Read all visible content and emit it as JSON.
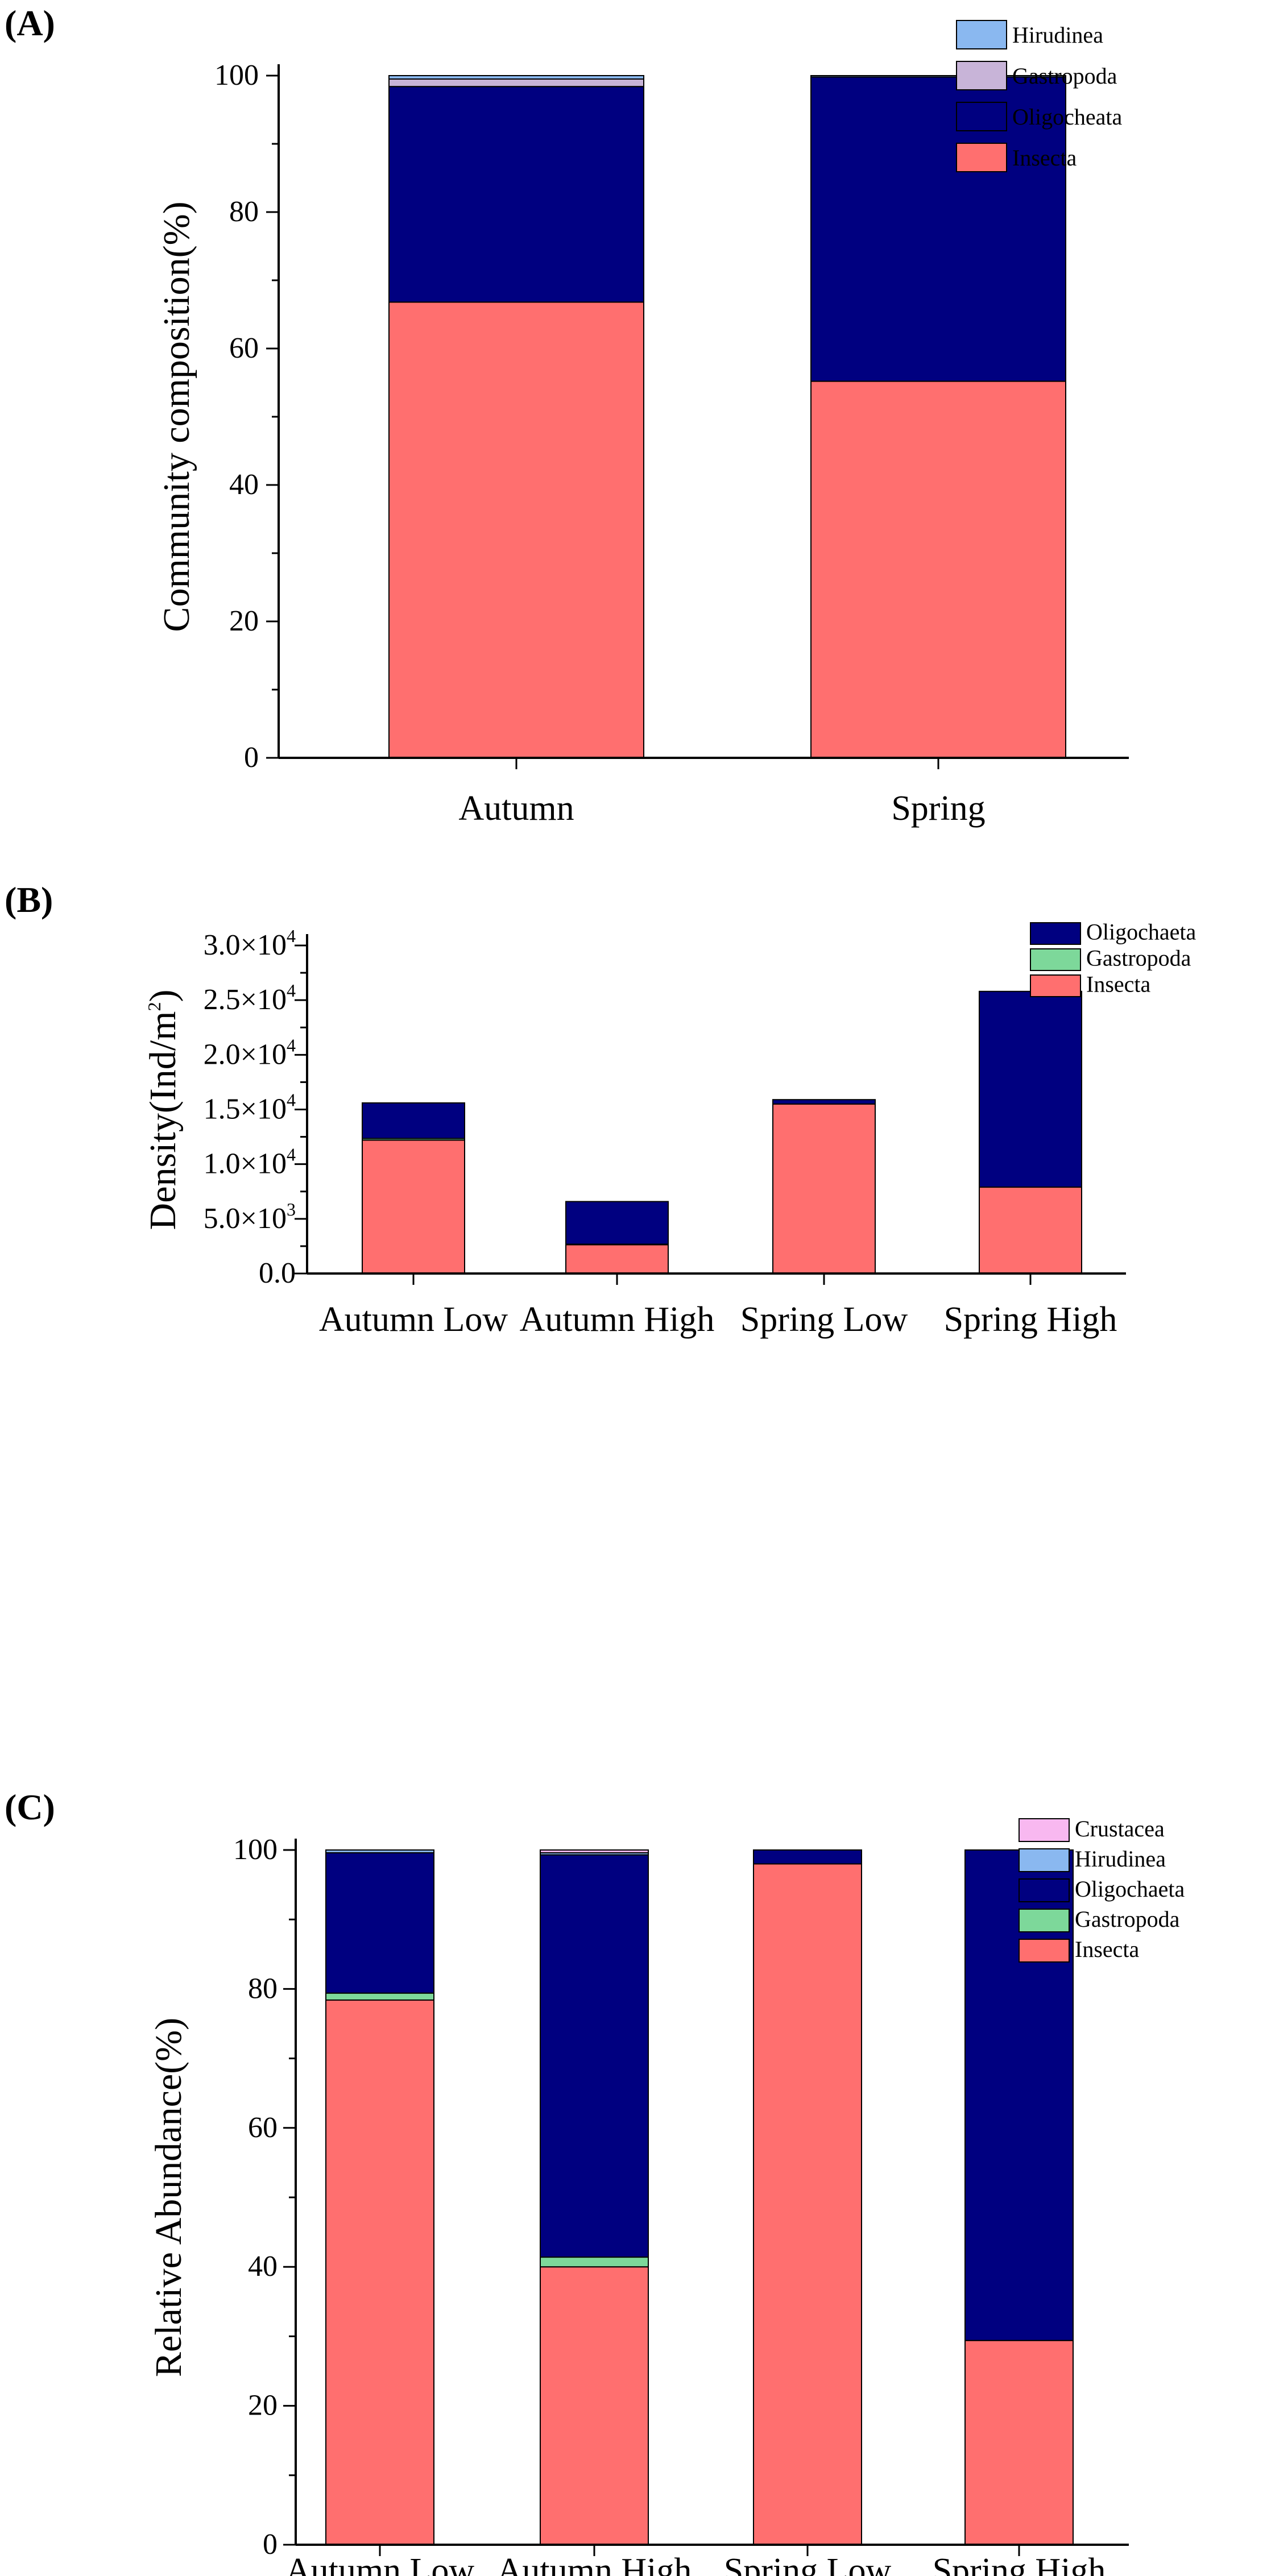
{
  "chart_data": [
    {
      "panel": "(A)",
      "type": "bar",
      "stacked": true,
      "categories": [
        "Autumn",
        "Spring"
      ],
      "ylabel": "Community composition(%)",
      "xlabel": "",
      "ylim": [
        0,
        100
      ],
      "yticks": [
        0,
        20,
        40,
        60,
        80,
        100
      ],
      "ytick_labels": [
        "0",
        "20",
        "40",
        "60",
        "80",
        "100"
      ],
      "legend_position": "top-right",
      "legend": [
        "Hirudinea",
        "Gastropoda",
        "Oligocheata",
        "Insecta"
      ],
      "series": [
        {
          "name": "Insecta",
          "color": "#ff6f6f",
          "values": [
            66.8,
            55.2
          ]
        },
        {
          "name": "Oligocheata",
          "color": "#000080",
          "values": [
            31.6,
            44.6
          ]
        },
        {
          "name": "Gastropoda",
          "color": "#c8b4d8",
          "values": [
            1.1,
            0
          ]
        },
        {
          "name": "Hirudinea",
          "color": "#8ab8f0",
          "values": [
            0.5,
            0.2
          ]
        }
      ]
    },
    {
      "panel": "(B)",
      "type": "bar",
      "stacked": true,
      "categories": [
        "Autumn Low",
        "Autumn High",
        "Spring Low",
        "Spring High"
      ],
      "ylabel": "Density(Ind/m",
      "ylabel_sup": "2",
      "ylabel_end": ")",
      "xlabel": "",
      "ylim": [
        0,
        30000
      ],
      "yticks": [
        0,
        5000,
        10000,
        15000,
        20000,
        25000,
        30000
      ],
      "ytick_labels": [
        {
          "mant": "0.0",
          "exp": ""
        },
        {
          "mant": "5.0×10",
          "exp": "3"
        },
        {
          "mant": "1.0×10",
          "exp": "4"
        },
        {
          "mant": "1.5×10",
          "exp": "4"
        },
        {
          "mant": "2.0×10",
          "exp": "4"
        },
        {
          "mant": "2.5×10",
          "exp": "4"
        },
        {
          "mant": "3.0×10",
          "exp": "4"
        }
      ],
      "legend_position": "top-right",
      "legend": [
        "Oligochaeta",
        "Gastropoda",
        "Insecta"
      ],
      "series": [
        {
          "name": "Insecta",
          "color": "#ff6f6f",
          "values": [
            12200,
            2650,
            15500,
            7900
          ]
        },
        {
          "name": "Gastropoda",
          "color": "#7dd89a",
          "values": [
            150,
            30,
            0,
            0
          ]
        },
        {
          "name": "Oligochaeta",
          "color": "#000080",
          "values": [
            3250,
            3900,
            400,
            17900
          ]
        }
      ]
    },
    {
      "panel": "(C)",
      "type": "bar",
      "stacked": true,
      "categories": [
        "Autumn Low",
        "Autumn High",
        "Spring Low",
        "Spring High"
      ],
      "ylabel": "Relative Abundance(%)",
      "xlabel": "",
      "ylim": [
        0,
        100
      ],
      "yticks": [
        0,
        20,
        40,
        60,
        80,
        100
      ],
      "ytick_labels": [
        "0",
        "20",
        "40",
        "60",
        "80",
        "100"
      ],
      "legend_position": "top-right",
      "legend": [
        "Crustacea",
        "Hirudinea",
        "Oligochaeta",
        "Gastropoda",
        "Insecta"
      ],
      "series": [
        {
          "name": "Insecta",
          "color": "#ff6f6f",
          "values": [
            78.4,
            40.0,
            98.0,
            29.4
          ]
        },
        {
          "name": "Gastropoda",
          "color": "#7dd89a",
          "values": [
            1.0,
            1.4,
            0,
            0
          ]
        },
        {
          "name": "Oligochaeta",
          "color": "#000080",
          "values": [
            20.2,
            57.9,
            2.0,
            70.6
          ]
        },
        {
          "name": "Hirudinea",
          "color": "#8ab8f0",
          "values": [
            0.4,
            0.3,
            0,
            0
          ]
        },
        {
          "name": "Crustacea",
          "color": "#f8b8f0",
          "values": [
            0,
            0.4,
            0,
            0
          ]
        }
      ]
    }
  ]
}
